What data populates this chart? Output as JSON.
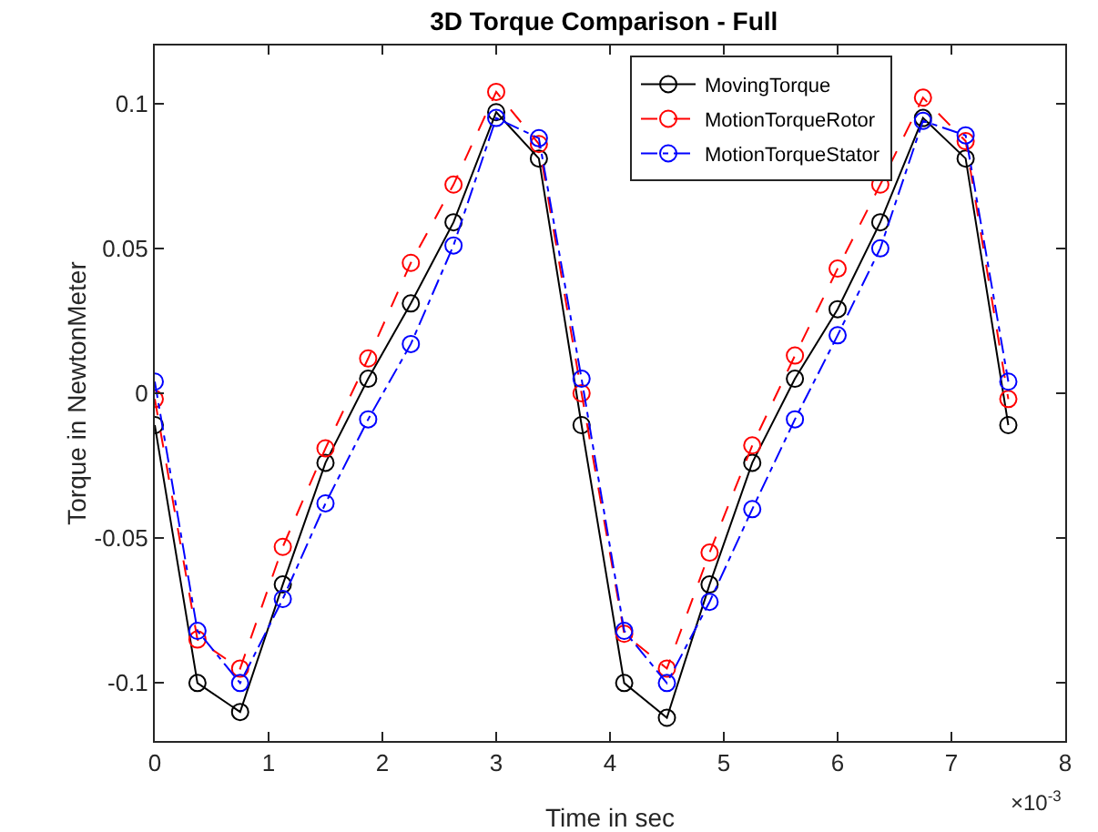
{
  "chart_data": {
    "type": "line",
    "title": "3D Torque Comparison - Full",
    "xlabel": "Time in sec",
    "ylabel": "Torque in NewtonMeter",
    "annotations": [
      "×10$^{-3}$"
    ],
    "x": [
      0,
      0.375,
      0.75,
      1.125,
      1.5,
      1.875,
      2.25,
      2.625,
      3,
      3.375,
      3.75,
      4.125,
      4.5,
      4.875,
      5.25,
      5.625,
      6,
      6.375,
      6.75,
      7.125,
      7.5
    ],
    "series": [
      {
        "name": "MovingTorque",
        "color": "#000000",
        "line_style": "solid",
        "values": [
          -0.011,
          -0.1,
          -0.11,
          -0.066,
          -0.024,
          0.005,
          0.031,
          0.059,
          0.097,
          0.081,
          -0.011,
          -0.1,
          -0.112,
          -0.066,
          -0.024,
          0.005,
          0.029,
          0.059,
          0.095,
          0.081,
          -0.011
        ]
      },
      {
        "name": "MotionTorqueRotor",
        "color": "#ff0000",
        "line_style": "dashed",
        "values": [
          -0.002,
          -0.085,
          -0.095,
          -0.053,
          -0.019,
          0.012,
          0.045,
          0.072,
          0.104,
          0.086,
          0.0,
          -0.083,
          -0.095,
          -0.055,
          -0.018,
          0.013,
          0.043,
          0.072,
          0.102,
          0.087,
          -0.002
        ]
      },
      {
        "name": "MotionTorqueStator",
        "color": "#0000ff",
        "line_style": "dashdot",
        "values": [
          0.004,
          -0.082,
          -0.1,
          -0.071,
          -0.038,
          -0.009,
          0.017,
          0.051,
          0.095,
          0.088,
          0.005,
          -0.082,
          -0.1,
          -0.072,
          -0.04,
          -0.009,
          0.02,
          0.05,
          0.094,
          0.089,
          0.004
        ]
      }
    ],
    "xlim": [
      0,
      8
    ],
    "xticks": [
      0,
      1,
      2,
      3,
      4,
      5,
      6,
      7,
      8
    ],
    "ylim": [
      -0.12,
      0.12
    ],
    "yticks": [
      -0.1,
      -0.05,
      0,
      0.05,
      0.1
    ],
    "grid": false,
    "legend": "top right",
    "marker": "circle"
  }
}
